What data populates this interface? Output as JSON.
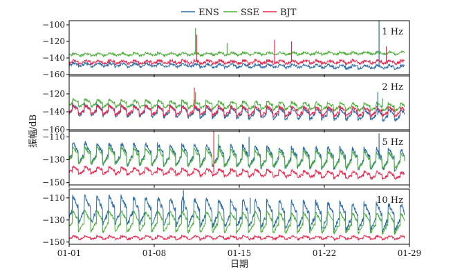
{
  "chart_data": {
    "type": "line",
    "title": "",
    "xlabel": "日期",
    "ylabel": "振幅/dB",
    "x_range_days": [
      0,
      28
    ],
    "x_ticks": [
      {
        "day": 0,
        "label": "01-01"
      },
      {
        "day": 7,
        "label": "01-08"
      },
      {
        "day": 14,
        "label": "01-15"
      },
      {
        "day": 21,
        "label": "01-22"
      },
      {
        "day": 28,
        "label": "01-29"
      }
    ],
    "series_styles": [
      {
        "name": "ENS",
        "color": "#2b6ca8"
      },
      {
        "name": "SSE",
        "color": "#4caf3a"
      },
      {
        "name": "BJT",
        "color": "#e8294f"
      }
    ],
    "legend": {
      "position": "top-center"
    },
    "data_day_range": [
      0,
      27.6
    ],
    "panels": [
      {
        "frequency_label": "1 Hz",
        "ylim": [
          -160,
          -95
        ],
        "y_ticks": [
          -160,
          -140,
          -120,
          -100
        ],
        "series": {
          "ENS": {
            "baseline": -148,
            "diurnal_amplitude": 2,
            "noise": 1.4,
            "trend_end": -3
          },
          "SSE": {
            "baseline": -136,
            "diurnal_amplitude": 1.5,
            "noise": 1.2,
            "trend_end": 2
          },
          "BJT": {
            "baseline": -145,
            "diurnal_amplitude": 2,
            "noise": 1.6,
            "trend_end": 0
          }
        },
        "spikes": [
          {
            "series": "SSE",
            "day": 10.4,
            "value": -104
          },
          {
            "series": "BJT",
            "day": 10.5,
            "value": -112
          },
          {
            "series": "SSE",
            "day": 13.0,
            "value": -122
          },
          {
            "series": "BJT",
            "day": 16.9,
            "value": -118
          },
          {
            "series": "BJT",
            "day": 18.3,
            "value": -120
          },
          {
            "series": "ENS",
            "day": 25.5,
            "value": -95
          },
          {
            "series": "BJT",
            "day": 26.1,
            "value": -126
          }
        ]
      },
      {
        "frequency_label": "2 Hz",
        "ylim": [
          -160,
          -100
        ],
        "y_ticks": [
          -160,
          -140,
          -120
        ],
        "series": {
          "ENS": {
            "baseline": -138,
            "diurnal_amplitude": 6,
            "noise": 1.8,
            "trend_end": -6
          },
          "SSE": {
            "baseline": -130,
            "diurnal_amplitude": 4,
            "noise": 1.5,
            "trend_end": -5
          },
          "BJT": {
            "baseline": -138,
            "diurnal_amplitude": 5,
            "noise": 1.6,
            "trend_end": -2
          }
        },
        "spikes": [
          {
            "series": "BJT",
            "day": 10.3,
            "value": -113
          },
          {
            "series": "SSE",
            "day": 10.4,
            "value": -118
          },
          {
            "series": "ENS",
            "day": 25.4,
            "value": -118
          },
          {
            "series": "SSE",
            "day": 25.8,
            "value": -125
          }
        ]
      },
      {
        "frequency_label": "5 Hz",
        "ylim": [
          -152,
          -105
        ],
        "y_ticks": [
          -150,
          -130,
          -110
        ],
        "series": {
          "ENS": {
            "baseline": -124,
            "diurnal_amplitude": 9,
            "noise": 1.8,
            "trend_end": -6
          },
          "SSE": {
            "baseline": -126,
            "diurnal_amplitude": 7,
            "noise": 1.4,
            "trend_end": -5
          },
          "BJT": {
            "baseline": -139,
            "diurnal_amplitude": 3,
            "noise": 1.2,
            "trend_end": -5
          }
        },
        "spikes": [
          {
            "series": "BJT",
            "day": 11.9,
            "value": -105
          },
          {
            "series": "SSE",
            "day": 12.3,
            "value": -108
          },
          {
            "series": "ENS",
            "day": 14.8,
            "value": -110
          },
          {
            "series": "ENS",
            "day": 25.5,
            "value": -107
          },
          {
            "series": "SSE",
            "day": 27.6,
            "value": -128
          }
        ]
      },
      {
        "frequency_label": "10 Hz",
        "ylim": [
          -152,
          -102
        ],
        "y_ticks": [
          -150,
          -130,
          -110
        ],
        "series": {
          "ENS": {
            "baseline": -120,
            "diurnal_amplitude": 12,
            "noise": 2.2,
            "trend_end": -8
          },
          "SSE": {
            "baseline": -131,
            "diurnal_amplitude": 9,
            "noise": 1.4,
            "trend_end": -2
          },
          "BJT": {
            "baseline": -146,
            "diurnal_amplitude": 1.5,
            "noise": 0.8,
            "trend_end": 0
          }
        },
        "spikes": [
          {
            "series": "ENS",
            "day": 9.4,
            "value": -103
          },
          {
            "series": "ENS",
            "day": 14.9,
            "value": -110
          }
        ]
      }
    ]
  }
}
